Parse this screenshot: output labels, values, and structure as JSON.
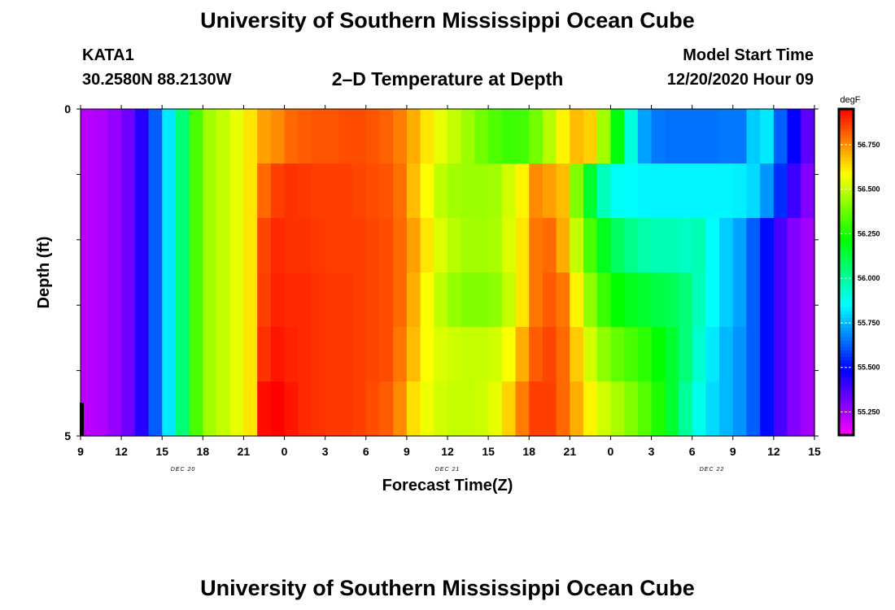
{
  "header": {
    "title": "University of Southern Mississippi Ocean Cube",
    "station": "KATA1",
    "coords": "30.2580N 88.2130W",
    "subtitle": "2–D Temperature at Depth",
    "model_start_label": "Model Start Time",
    "model_start_value": "12/20/2020 Hour 09"
  },
  "footer": {
    "title": "University of Southern Mississippi Ocean Cube"
  },
  "chart_data": {
    "type": "heatmap",
    "title": "2–D Temperature at Depth",
    "xlabel": "Forecast Time(Z)",
    "ylabel": "Depth (ft)",
    "units": "degF",
    "x_tick_labels": [
      "9",
      "12",
      "15",
      "18",
      "21",
      "0",
      "3",
      "6",
      "9",
      "12",
      "15",
      "18",
      "21",
      "0",
      "3",
      "6",
      "9",
      "12",
      "15"
    ],
    "date_labels": [
      "DEC 20",
      "DEC 21",
      "DEC 22"
    ],
    "y_tick_labels": [
      "0",
      "5"
    ],
    "ylim": [
      0,
      5
    ],
    "x_hours": [
      9,
      63
    ],
    "depth_levels": [
      0,
      1,
      2,
      3,
      4,
      5
    ],
    "colorbar": {
      "ticks": [
        "55.250",
        "55.500",
        "55.750",
        "56.000",
        "56.250",
        "56.500",
        "56.750"
      ],
      "range": [
        55.12,
        56.95
      ]
    },
    "temperatures_degF": {
      "hours": [
        9,
        10,
        11,
        12,
        13,
        14,
        15,
        16,
        17,
        18,
        19,
        20,
        21,
        22,
        23,
        24,
        25,
        26,
        27,
        28,
        29,
        30,
        31,
        32,
        33,
        34,
        35,
        36,
        37,
        38,
        39,
        40,
        41,
        42,
        43,
        44,
        45,
        46,
        47,
        48,
        49,
        50,
        51,
        52,
        53,
        54,
        55,
        56,
        57,
        58,
        59,
        60,
        61,
        62,
        63
      ],
      "rows": [
        [
          55.22,
          55.23,
          55.27,
          55.33,
          55.43,
          55.62,
          55.82,
          56.05,
          56.32,
          56.45,
          56.5,
          56.55,
          56.62,
          56.72,
          56.75,
          56.8,
          56.82,
          56.83,
          56.83,
          56.84,
          56.84,
          56.83,
          56.81,
          56.77,
          56.7,
          56.62,
          56.55,
          56.5,
          56.44,
          56.38,
          56.33,
          56.3,
          56.31,
          56.38,
          56.48,
          56.6,
          56.68,
          56.65,
          56.45,
          56.2,
          55.9,
          55.72,
          55.66,
          55.65,
          55.65,
          55.65,
          55.65,
          55.66,
          55.66,
          55.78,
          55.82,
          55.62,
          55.48,
          55.35,
          55.28
        ],
        [
          55.22,
          55.23,
          55.27,
          55.33,
          55.43,
          55.62,
          55.82,
          56.05,
          56.32,
          56.45,
          56.5,
          56.55,
          56.62,
          56.8,
          56.86,
          56.88,
          56.87,
          56.86,
          56.86,
          56.86,
          56.85,
          56.84,
          56.83,
          56.79,
          56.68,
          56.58,
          56.49,
          56.45,
          56.44,
          56.44,
          56.45,
          56.52,
          56.6,
          56.75,
          56.72,
          56.68,
          56.4,
          56.15,
          55.95,
          55.86,
          55.85,
          55.84,
          55.84,
          55.84,
          55.84,
          55.84,
          55.84,
          55.84,
          55.83,
          55.8,
          55.7,
          55.55,
          55.4,
          55.3,
          55.25
        ],
        [
          55.22,
          55.23,
          55.27,
          55.33,
          55.43,
          55.62,
          55.82,
          56.05,
          56.32,
          56.45,
          56.5,
          56.55,
          56.62,
          56.85,
          56.89,
          56.88,
          56.88,
          56.87,
          56.86,
          56.86,
          56.86,
          56.85,
          56.84,
          56.8,
          56.72,
          56.62,
          56.53,
          56.48,
          56.45,
          56.45,
          56.46,
          56.53,
          56.62,
          56.78,
          56.8,
          56.7,
          56.5,
          56.32,
          56.18,
          56.08,
          56.02,
          55.98,
          55.96,
          55.96,
          55.94,
          55.96,
          55.85,
          55.78,
          55.72,
          55.62,
          55.5,
          55.38,
          55.3,
          55.25,
          55.22
        ],
        [
          55.22,
          55.23,
          55.27,
          55.33,
          55.43,
          55.62,
          55.82,
          56.05,
          56.32,
          56.45,
          56.5,
          56.55,
          56.62,
          56.86,
          56.9,
          56.89,
          56.89,
          56.88,
          56.87,
          56.87,
          56.86,
          56.85,
          56.84,
          56.8,
          56.7,
          56.58,
          56.49,
          56.43,
          56.4,
          56.4,
          56.42,
          56.5,
          56.62,
          56.78,
          56.82,
          56.78,
          56.6,
          56.42,
          56.3,
          56.22,
          56.18,
          56.15,
          56.12,
          56.1,
          56.05,
          55.95,
          55.85,
          55.78,
          55.72,
          55.62,
          55.5,
          55.38,
          55.3,
          55.25,
          55.22
        ],
        [
          55.22,
          55.23,
          55.27,
          55.33,
          55.43,
          55.62,
          55.82,
          56.05,
          56.32,
          56.45,
          56.5,
          56.55,
          56.62,
          56.88,
          56.92,
          56.9,
          56.89,
          56.88,
          56.87,
          56.87,
          56.86,
          56.85,
          56.84,
          56.78,
          56.68,
          56.58,
          56.53,
          56.51,
          56.5,
          56.5,
          56.52,
          56.58,
          56.7,
          56.82,
          56.85,
          56.8,
          56.66,
          56.52,
          56.42,
          56.36,
          56.32,
          56.28,
          56.22,
          56.15,
          56.05,
          55.92,
          55.82,
          55.75,
          55.7,
          55.62,
          55.5,
          55.38,
          55.3,
          55.25,
          55.22
        ],
        [
          55.22,
          55.23,
          55.27,
          55.33,
          55.43,
          55.62,
          55.82,
          56.05,
          56.32,
          56.45,
          56.5,
          56.55,
          56.62,
          56.93,
          56.96,
          56.92,
          56.89,
          56.88,
          56.87,
          56.87,
          56.86,
          56.84,
          56.82,
          56.75,
          56.63,
          56.56,
          56.52,
          56.5,
          56.5,
          56.51,
          56.55,
          56.65,
          56.77,
          56.86,
          56.86,
          56.8,
          56.7,
          56.6,
          56.52,
          56.46,
          56.4,
          56.34,
          56.26,
          56.15,
          56.0,
          55.88,
          55.8,
          55.75,
          55.7,
          55.62,
          55.5,
          55.38,
          55.3,
          55.25,
          55.22
        ]
      ]
    }
  }
}
